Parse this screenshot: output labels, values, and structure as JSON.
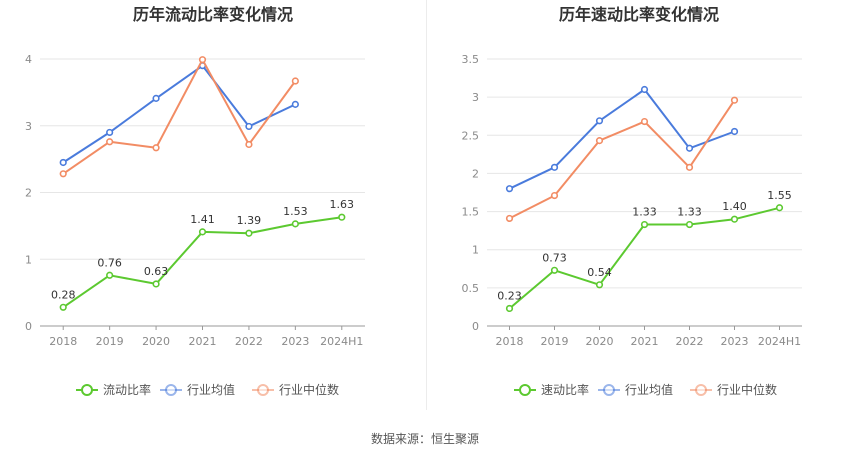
{
  "footer": {
    "label": "数据来源：",
    "source": "恒生聚源"
  },
  "chart_data": [
    {
      "type": "line",
      "title": "历年流动比率变化情况",
      "categories": [
        "2018",
        "2019",
        "2020",
        "2021",
        "2022",
        "2023",
        "2024H1"
      ],
      "ylim": [
        0,
        4
      ],
      "yticks": [
        "0",
        "1",
        "2",
        "3",
        "4"
      ],
      "grid": true,
      "legend_position": "bottom",
      "series": [
        {
          "name": "流动比率",
          "color": "#5cc930",
          "values": [
            0.28,
            0.76,
            0.63,
            1.41,
            1.39,
            1.53,
            1.63
          ],
          "labels": [
            "0.28",
            "0.76",
            "0.63",
            "1.41",
            "1.39",
            "1.53",
            "1.63"
          ]
        },
        {
          "name": "行业均值",
          "color": "#4a7bdc",
          "values": [
            2.45,
            2.9,
            3.41,
            3.9,
            2.99,
            3.32,
            null
          ]
        },
        {
          "name": "行业中位数",
          "color": "#f28c64",
          "values": [
            2.28,
            2.76,
            2.67,
            3.99,
            2.72,
            3.67,
            null
          ]
        }
      ]
    },
    {
      "type": "line",
      "title": "历年速动比率变化情况",
      "categories": [
        "2018",
        "2019",
        "2020",
        "2021",
        "2022",
        "2023",
        "2024H1"
      ],
      "ylim": [
        0,
        3.5
      ],
      "yticks": [
        "0",
        "0.5",
        "1",
        "1.5",
        "2",
        "2.5",
        "3",
        "3.5"
      ],
      "grid": true,
      "legend_position": "bottom",
      "series": [
        {
          "name": "速动比率",
          "color": "#5cc930",
          "values": [
            0.23,
            0.73,
            0.54,
            1.33,
            1.33,
            1.4,
            1.55
          ],
          "labels": [
            "0.23",
            "0.73",
            "0.54",
            "1.33",
            "1.33",
            "1.40",
            "1.55"
          ]
        },
        {
          "name": "行业均值",
          "color": "#4a7bdc",
          "values": [
            1.8,
            2.08,
            2.69,
            3.1,
            2.33,
            2.55,
            null
          ]
        },
        {
          "name": "行业中位数",
          "color": "#f28c64",
          "values": [
            1.41,
            1.71,
            2.43,
            2.68,
            2.08,
            2.96,
            null
          ]
        }
      ]
    }
  ]
}
